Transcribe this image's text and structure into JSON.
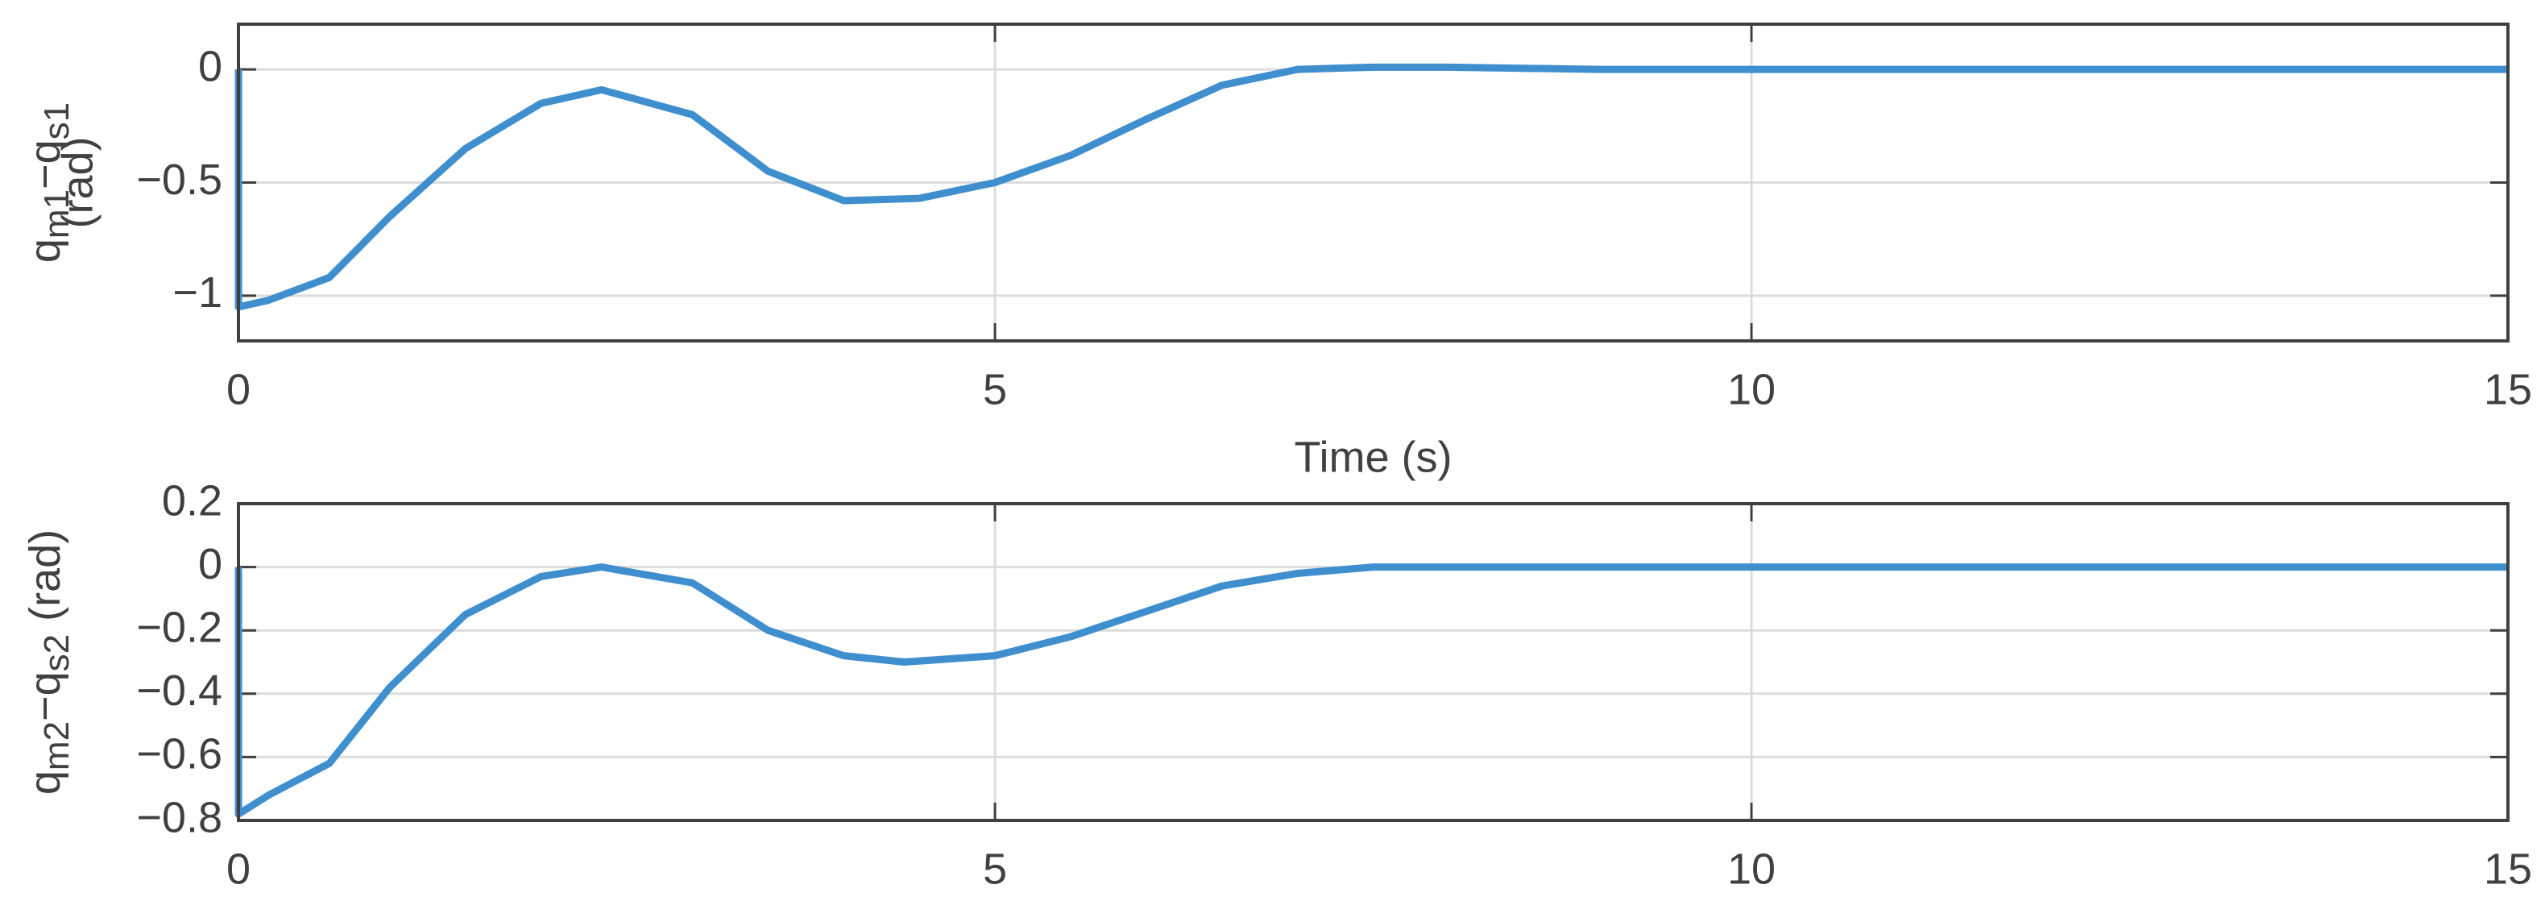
{
  "chart_data": [
    {
      "type": "line",
      "ylabel_parts": [
        "q",
        "m1",
        "−q",
        "s1"
      ],
      "ylabel_unit": "(rad)",
      "xlabel": "Time (s)",
      "x": [
        0,
        0,
        0.2,
        0.6,
        1,
        1.5,
        2,
        2.4,
        3,
        3.5,
        4,
        4.5,
        5,
        5.5,
        6,
        6.5,
        7,
        7.5,
        8,
        9,
        10,
        12,
        15
      ],
      "series": [
        {
          "color": "#3f8fcf",
          "values": [
            0,
            -1.05,
            -1.02,
            -0.92,
            -0.65,
            -0.35,
            -0.15,
            -0.09,
            -0.2,
            -0.45,
            -0.58,
            -0.57,
            -0.5,
            -0.38,
            -0.22,
            -0.07,
            0.0,
            0.01,
            0.01,
            0,
            0,
            0,
            0
          ]
        }
      ],
      "xlim": [
        0,
        15
      ],
      "xticks": [
        0,
        5,
        10,
        15
      ],
      "ylim": [
        -1.2,
        0.2
      ],
      "yticks": [
        {
          "value": -1,
          "label": "−1"
        },
        {
          "value": -0.5,
          "label": "−0.5"
        },
        0
      ],
      "grid": true
    },
    {
      "type": "line",
      "ylabel_parts": [
        "q",
        "m2",
        "−q",
        "s2"
      ],
      "ylabel_unit": "(rad)",
      "x": [
        0,
        0,
        0.2,
        0.6,
        1,
        1.5,
        2,
        2.4,
        3,
        3.5,
        4,
        4.4,
        5,
        5.5,
        6,
        6.5,
        7,
        7.5,
        8,
        9,
        10,
        12,
        15
      ],
      "series": [
        {
          "color": "#3f8fcf",
          "values": [
            0,
            -0.78,
            -0.72,
            -0.62,
            -0.38,
            -0.15,
            -0.03,
            0,
            -0.05,
            -0.2,
            -0.28,
            -0.3,
            -0.28,
            -0.22,
            -0.14,
            -0.06,
            -0.02,
            0,
            0,
            0,
            0,
            0,
            0
          ]
        }
      ],
      "xlim": [
        0,
        15
      ],
      "xticks": [
        0,
        5,
        10,
        15
      ],
      "ylim": [
        -0.8,
        0.2
      ],
      "yticks": [
        {
          "value": -0.8,
          "label": "−0.8"
        },
        {
          "value": -0.6,
          "label": "−0.6"
        },
        {
          "value": -0.4,
          "label": "−0.4"
        },
        {
          "value": -0.2,
          "label": "−0.2"
        },
        0,
        0.2
      ],
      "grid": true
    }
  ]
}
